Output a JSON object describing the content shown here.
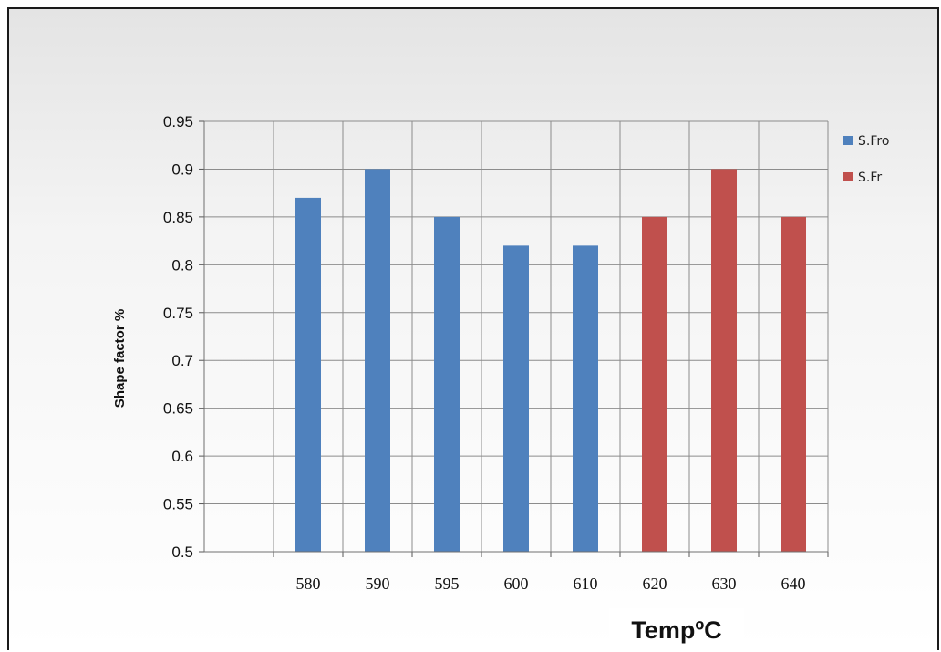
{
  "chart_data": {
    "type": "bar",
    "categories": [
      "",
      "580",
      "590",
      "595",
      "600",
      "610",
      "620",
      "630",
      "640"
    ],
    "series": [
      {
        "name": "S.Fro",
        "color": "#4f81bd",
        "values": [
          null,
          0.87,
          0.9,
          0.85,
          0.82,
          0.82,
          null,
          null,
          null
        ]
      },
      {
        "name": "S.Fr",
        "color": "#c0504d",
        "values": [
          null,
          null,
          null,
          null,
          null,
          null,
          0.85,
          0.9,
          0.85
        ]
      }
    ],
    "title": "",
    "xlabel": "TempºC",
    "ylabel": "Shape factor %",
    "ylim": [
      0.5,
      0.95
    ],
    "yticks": [
      "0.5",
      "0.55",
      "0.6",
      "0.65",
      "0.7",
      "0.75",
      "0.8",
      "0.85",
      "0.9",
      "0.95"
    ],
    "grid": true,
    "legend_position": "right"
  }
}
